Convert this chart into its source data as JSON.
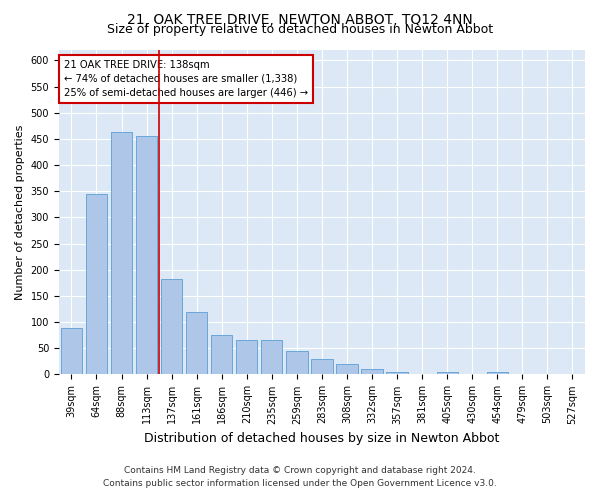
{
  "title": "21, OAK TREE DRIVE, NEWTON ABBOT, TQ12 4NN",
  "subtitle": "Size of property relative to detached houses in Newton Abbot",
  "xlabel": "Distribution of detached houses by size in Newton Abbot",
  "ylabel": "Number of detached properties",
  "footnote1": "Contains HM Land Registry data © Crown copyright and database right 2024.",
  "footnote2": "Contains public sector information licensed under the Open Government Licence v3.0.",
  "categories": [
    "39sqm",
    "64sqm",
    "88sqm",
    "113sqm",
    "137sqm",
    "161sqm",
    "186sqm",
    "210sqm",
    "235sqm",
    "259sqm",
    "283sqm",
    "308sqm",
    "332sqm",
    "357sqm",
    "381sqm",
    "405sqm",
    "430sqm",
    "454sqm",
    "479sqm",
    "503sqm",
    "527sqm"
  ],
  "values": [
    89,
    345,
    463,
    455,
    182,
    120,
    75,
    65,
    65,
    45,
    30,
    20,
    10,
    5,
    0,
    5,
    0,
    5,
    0,
    0,
    0
  ],
  "bar_color": "#aec6e8",
  "bar_edge_color": "#5a9fd4",
  "vline_color": "#cc0000",
  "annotation_line1": "21 OAK TREE DRIVE: 138sqm",
  "annotation_line2": "← 74% of detached houses are smaller (1,338)",
  "annotation_line3": "25% of semi-detached houses are larger (446) →",
  "annotation_box_color": "#ffffff",
  "annotation_box_edge": "#cc0000",
  "ylim": [
    0,
    620
  ],
  "yticks": [
    0,
    50,
    100,
    150,
    200,
    250,
    300,
    350,
    400,
    450,
    500,
    550,
    600
  ],
  "plot_bg_color": "#dce8f5",
  "title_fontsize": 10,
  "subtitle_fontsize": 9,
  "ylabel_fontsize": 8,
  "xlabel_fontsize": 9,
  "tick_fontsize": 7,
  "footnote_fontsize": 6.5
}
